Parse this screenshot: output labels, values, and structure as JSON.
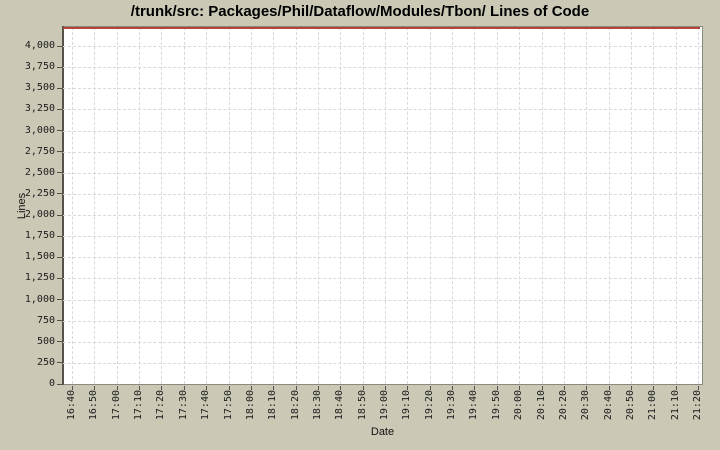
{
  "window": {
    "background_color": "#cbc8b6"
  },
  "chart_data": {
    "type": "line",
    "title": "/trunk/src: Packages/Phil/Dataflow/Modules/Tbon/ Lines of Code",
    "xlabel": "Date",
    "ylabel": "Lines",
    "x_tick_labels": [
      "16:40",
      "16:50",
      "17:00",
      "17:10",
      "17:20",
      "17:30",
      "17:40",
      "17:50",
      "18:00",
      "18:10",
      "18:20",
      "18:30",
      "18:40",
      "18:50",
      "19:00",
      "19:10",
      "19:20",
      "19:30",
      "19:40",
      "19:50",
      "20:00",
      "20:10",
      "20:20",
      "20:30",
      "20:40",
      "20:50",
      "21:00",
      "21:10",
      "21:20"
    ],
    "y_tick_labels": [
      "0",
      "250",
      "500",
      "750",
      "1,000",
      "1,250",
      "1,500",
      "1,750",
      "2,000",
      "2,250",
      "2,500",
      "2,750",
      "3,000",
      "3,250",
      "3,500",
      "3,750",
      "4,000"
    ],
    "y_tick_step": 250,
    "ylim": [
      0,
      4225
    ],
    "grid": true,
    "legend": "none",
    "series": [
      {
        "name": "Lines of Code",
        "color": "#b5443a",
        "shape": "constant horizontal line clipped along top edge of plot area",
        "constant_value_estimate": 4225
      }
    ],
    "colors": {
      "page_background": "#cbc8b6",
      "plot_background": "#ffffff",
      "gridline": "#d9d9d9",
      "plot_outline": "#8a897e",
      "axis_and_ticks": "#54534b",
      "series_line": "#b5443a",
      "text": "#1c1c1c"
    }
  }
}
